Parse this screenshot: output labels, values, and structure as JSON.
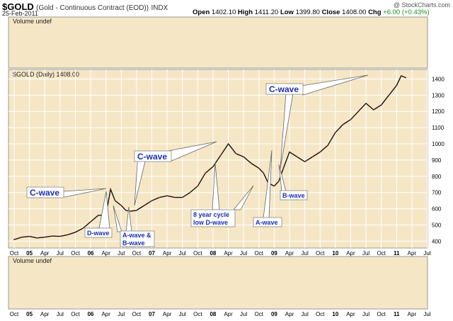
{
  "header": {
    "symbol": "$GOLD",
    "description": "(Gold - Continuous Contract (EOD))",
    "exchange": "INDX",
    "date": "25-Feb-2011",
    "watermark": "@ StockCharts.com",
    "open_label": "Open",
    "open": "1402.10",
    "high_label": "High",
    "high": "1411.20",
    "low_label": "Low",
    "low": "1399.80",
    "close_label": "Close",
    "close": "1408.00",
    "chg_label": "Chg",
    "chg": "+6.00 (+0.43%)"
  },
  "volume_panel_label": "Volume undef",
  "volume_panel_label_bottom": "Volume undef",
  "price_panel_label": "$GOLD (Daily) 1408.00",
  "chart_data": {
    "type": "line",
    "title": "$GOLD (Daily) 1408.00",
    "ylim": [
      380,
      1450
    ],
    "yticks": [
      400,
      500,
      600,
      700,
      800,
      900,
      1000,
      1100,
      1200,
      1300,
      1400
    ],
    "x_tick_labels": [
      "Oct",
      "05",
      "Apr",
      "Jul",
      "Oct",
      "06",
      "Apr",
      "Jul",
      "Oct",
      "07",
      "Apr",
      "Jul",
      "Oct",
      "08",
      "Apr",
      "Jul",
      "Oct",
      "09",
      "Apr",
      "Jul",
      "Oct",
      "10",
      "Apr",
      "Jul",
      "Oct",
      "11",
      "Apr",
      "Jul"
    ],
    "x_tick_index": [
      0,
      1,
      2,
      3,
      4,
      5,
      6,
      7,
      8,
      9,
      10,
      11,
      12,
      13,
      14,
      15,
      16,
      17,
      18,
      19,
      20,
      21,
      22,
      23,
      24,
      25,
      26,
      27
    ],
    "x_tick_bold": [
      "05",
      "06",
      "07",
      "08",
      "09",
      "10",
      "11"
    ],
    "grid": true,
    "series": [
      {
        "t": [
          0,
          0.5,
          1,
          1.5,
          2,
          2.5,
          3,
          3.5,
          4,
          4.5,
          5,
          5.5,
          6,
          6.3,
          6.6,
          7,
          7.3,
          7.6,
          8,
          8.5,
          9,
          9.5,
          10,
          10.5,
          11,
          11.5,
          12,
          12.5,
          13,
          13.5,
          14,
          14.5,
          15,
          15.5,
          16,
          16.3,
          16.6,
          17,
          17.3,
          17.6,
          18,
          18.5,
          19,
          19.5,
          20,
          20.5,
          21,
          21.5,
          22,
          22.5,
          23,
          23.5,
          24,
          24.5,
          25,
          25.3,
          25.6
        ],
        "values": [
          410,
          425,
          430,
          420,
          425,
          432,
          430,
          440,
          455,
          480,
          520,
          560,
          560,
          720,
          650,
          620,
          590,
          585,
          590,
          620,
          650,
          670,
          680,
          670,
          670,
          700,
          740,
          820,
          860,
          930,
          1000,
          940,
          920,
          880,
          850,
          820,
          760,
          740,
          770,
          850,
          950,
          920,
          890,
          920,
          950,
          990,
          1070,
          1120,
          1150,
          1200,
          1250,
          1210,
          1240,
          1300,
          1360,
          1420,
          1408
        ]
      }
    ],
    "annotations": [
      {
        "text": "C-wave"
      },
      {
        "text": "D-wave"
      },
      {
        "text": "A-wave &"
      },
      {
        "text": "B-wave"
      },
      {
        "text": "C-wave"
      },
      {
        "text": "8 year cycle"
      },
      {
        "text": "low D-wave"
      },
      {
        "text": "A-wave"
      },
      {
        "text": "B-wave"
      },
      {
        "text": "C-wave"
      }
    ]
  }
}
